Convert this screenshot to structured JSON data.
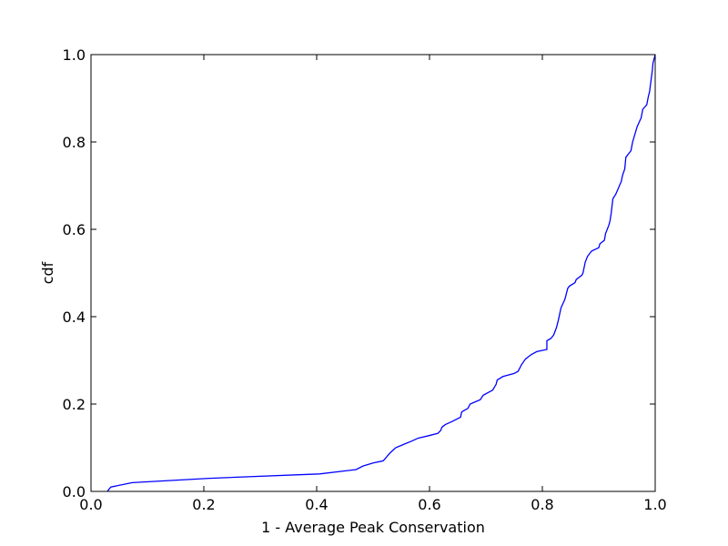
{
  "chart_data": {
    "type": "line",
    "xlabel": "1 - Average Peak Conservation",
    "ylabel": "cdf",
    "xlim": [
      0.0,
      1.0
    ],
    "ylim": [
      0.0,
      1.0
    ],
    "grid": false,
    "xticks": [
      "0.0",
      "0.2",
      "0.4",
      "0.6",
      "0.8",
      "1.0"
    ],
    "yticks": [
      "0.0",
      "0.2",
      "0.4",
      "0.6",
      "0.8",
      "1.0"
    ],
    "series": [
      {
        "color": "#0000ff",
        "x": [
          0.029,
          0.035,
          0.073,
          0.21,
          0.405,
          0.47,
          0.482,
          0.5,
          0.518,
          0.53,
          0.54,
          0.555,
          0.568,
          0.58,
          0.6,
          0.615,
          0.62,
          0.622,
          0.628,
          0.64,
          0.655,
          0.657,
          0.668,
          0.672,
          0.69,
          0.695,
          0.712,
          0.718,
          0.72,
          0.73,
          0.75,
          0.757,
          0.763,
          0.77,
          0.78,
          0.79,
          0.808,
          0.808,
          0.815,
          0.82,
          0.825,
          0.828,
          0.833,
          0.84,
          0.845,
          0.848,
          0.858,
          0.86,
          0.87,
          0.872,
          0.876,
          0.88,
          0.887,
          0.9,
          0.902,
          0.91,
          0.912,
          0.918,
          0.92,
          0.922,
          0.925,
          0.93,
          0.94,
          0.942,
          0.946,
          0.948,
          0.957,
          0.96,
          0.968,
          0.975,
          0.978,
          0.985,
          0.988,
          0.99,
          0.993,
          0.995,
          0.996,
          0.998,
          1.0
        ],
        "y": [
          0.0,
          0.01,
          0.02,
          0.03,
          0.04,
          0.05,
          0.058,
          0.065,
          0.07,
          0.088,
          0.1,
          0.108,
          0.115,
          0.122,
          0.128,
          0.133,
          0.14,
          0.147,
          0.153,
          0.16,
          0.17,
          0.182,
          0.19,
          0.2,
          0.21,
          0.22,
          0.232,
          0.245,
          0.255,
          0.263,
          0.27,
          0.275,
          0.29,
          0.303,
          0.313,
          0.32,
          0.325,
          0.345,
          0.35,
          0.358,
          0.375,
          0.39,
          0.42,
          0.44,
          0.465,
          0.47,
          0.478,
          0.485,
          0.495,
          0.5,
          0.525,
          0.538,
          0.55,
          0.558,
          0.567,
          0.575,
          0.59,
          0.61,
          0.62,
          0.637,
          0.67,
          0.68,
          0.71,
          0.723,
          0.738,
          0.765,
          0.78,
          0.8,
          0.835,
          0.855,
          0.875,
          0.885,
          0.905,
          0.915,
          0.945,
          0.965,
          0.98,
          0.99,
          1.0
        ]
      }
    ]
  }
}
